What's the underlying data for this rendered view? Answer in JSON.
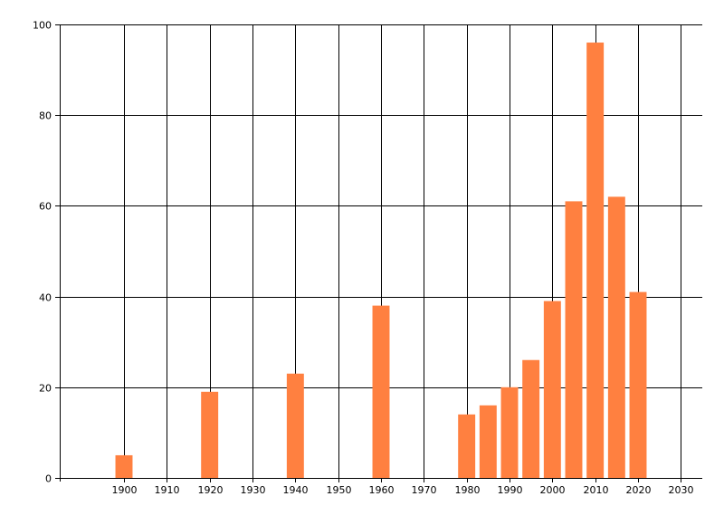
{
  "chart_data": {
    "type": "bar",
    "x": [
      1900,
      1920,
      1940,
      1960,
      1980,
      1985,
      1990,
      1995,
      2000,
      2005,
      2010,
      2015,
      2020
    ],
    "values": [
      5,
      19,
      23,
      38,
      14,
      16,
      20,
      26,
      39,
      61,
      96,
      62,
      41
    ],
    "xlim": [
      1885,
      2035
    ],
    "ylim": [
      0,
      100
    ],
    "xticks": [
      1900,
      1910,
      1920,
      1930,
      1940,
      1950,
      1960,
      1970,
      1980,
      1990,
      2000,
      2010,
      2020,
      2030
    ],
    "yticks": [
      0,
      20,
      40,
      60,
      80,
      100
    ],
    "grid": true,
    "bar_color": "#ff8040",
    "title": "",
    "xlabel": "",
    "ylabel": ""
  }
}
